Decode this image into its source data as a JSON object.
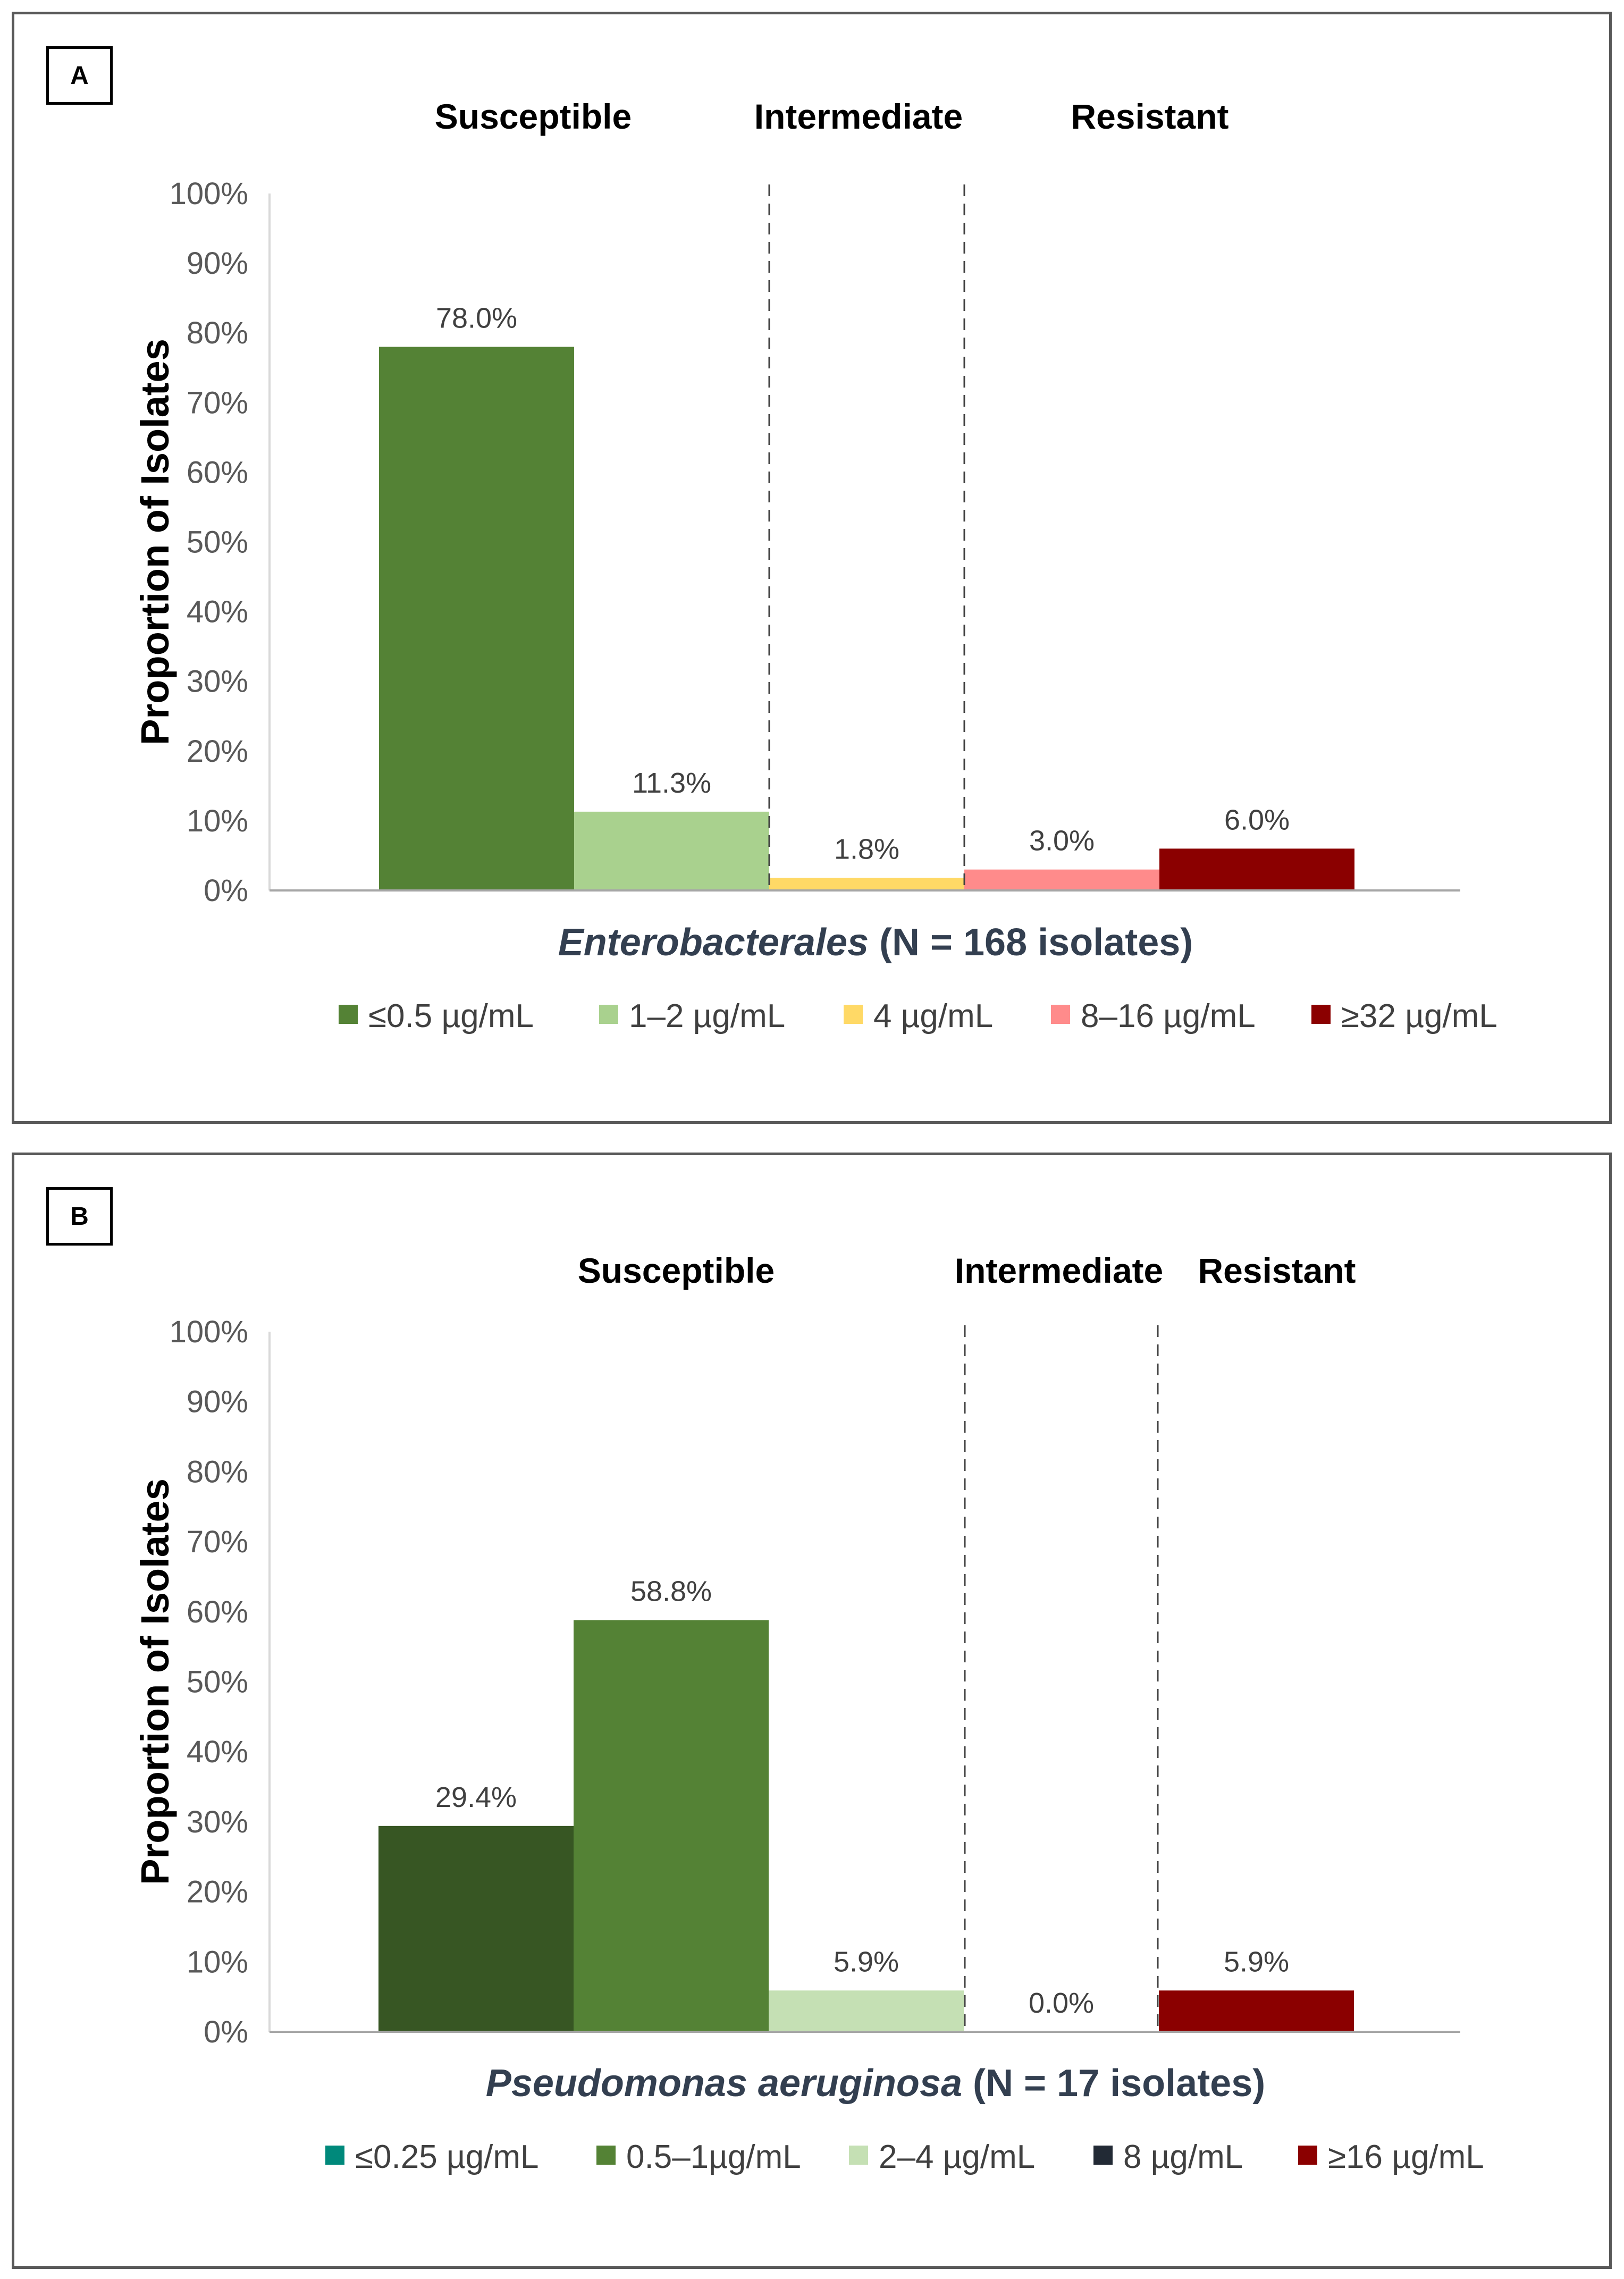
{
  "chart_data": [
    {
      "type": "bar",
      "panel": "A",
      "ylabel": "Proportion of Isolates",
      "xlabel_italic": "Enterobacterales",
      "xlabel_rest": " (N = 168 isolates)",
      "ylim": [
        0,
        100
      ],
      "yticks": [
        "0%",
        "10%",
        "20%",
        "30%",
        "40%",
        "50%",
        "60%",
        "70%",
        "80%",
        "90%",
        "100%"
      ],
      "categories": [
        "≤0.5 µg/mL",
        "1–2 µg/mL",
        "4 µg/mL",
        "8–16 µg/mL",
        "≥32 µg/mL"
      ],
      "values": [
        78.0,
        11.3,
        1.8,
        3.0,
        6.0
      ],
      "value_labels": [
        "78.0%",
        "11.3%",
        "1.8%",
        "3.0%",
        "6.0%"
      ],
      "bar_colors": [
        "#548235",
        "#a9d18e",
        "#ffd966",
        "#ff8b8b",
        "#8b0000"
      ],
      "legend": [
        {
          "label": "≤0.5 µg/mL",
          "color": "#548235"
        },
        {
          "label": "1–2 µg/mL",
          "color": "#a9d18e"
        },
        {
          "label": "4 µg/mL",
          "color": "#ffd966"
        },
        {
          "label": "8–16 µg/mL",
          "color": "#ff8b8b"
        },
        {
          "label": "≥32 µg/mL",
          "color": "#8b0000"
        }
      ],
      "interpretive_categories": [
        "Susceptible",
        "Intermediate",
        "Resistant"
      ]
    },
    {
      "type": "bar",
      "panel": "B",
      "ylabel": "Proportion of Isolates",
      "xlabel_italic": "Pseudomonas aeruginosa",
      "xlabel_rest": " (N = 17 isolates)",
      "ylim": [
        0,
        100
      ],
      "yticks": [
        "0%",
        "10%",
        "20%",
        "30%",
        "40%",
        "50%",
        "60%",
        "70%",
        "80%",
        "90%",
        "100%"
      ],
      "categories": [
        "≤0.25 µg/mL",
        "0.5–1µg/mL",
        "2–4 µg/mL",
        "8 µg/mL",
        "≥16 µg/mL"
      ],
      "values": [
        29.4,
        58.8,
        5.9,
        0.0,
        5.9
      ],
      "value_labels": [
        "29.4%",
        "58.8%",
        "5.9%",
        "0.0%",
        "5.9%"
      ],
      "bar_colors": [
        "#375623",
        "#548235",
        "#c5e0b4",
        "#222a35",
        "#8b0000"
      ],
      "legend": [
        {
          "label": "≤0.25 µg/mL",
          "color": "#00897b"
        },
        {
          "label": "0.5–1µg/mL",
          "color": "#548235"
        },
        {
          "label": "2–4 µg/mL",
          "color": "#c5e0b4"
        },
        {
          "label": "8 µg/mL",
          "color": "#222a35"
        },
        {
          "label": "≥16 µg/mL",
          "color": "#8b0000"
        }
      ],
      "interpretive_categories": [
        "Susceptible",
        "Intermediate",
        "Resistant"
      ]
    }
  ]
}
